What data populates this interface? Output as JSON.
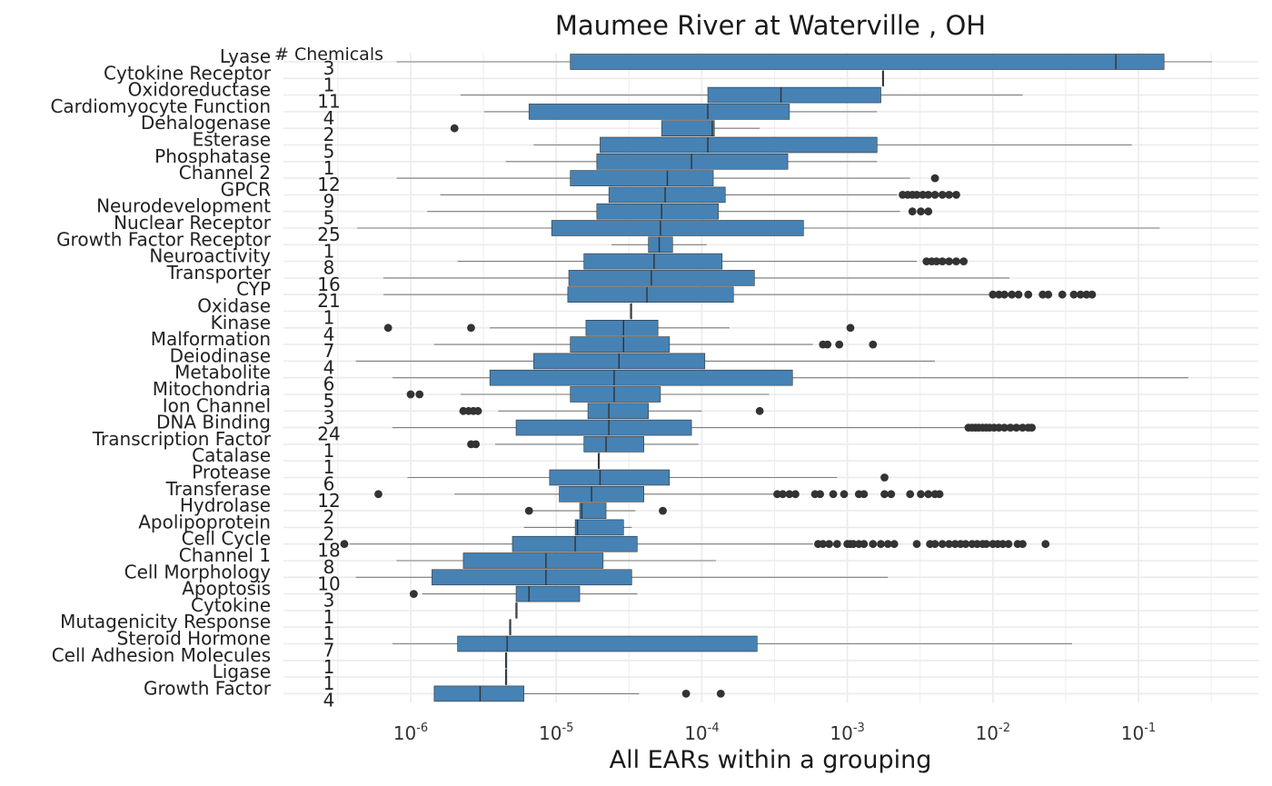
{
  "chart_data": {
    "type": "boxplot",
    "orientation": "horizontal",
    "title": "Maumee River at Waterville , OH",
    "xlabel": "All EARs within a grouping",
    "count_header": "# Chemicals",
    "x_scale": "log10",
    "xlim": [
      3.2e-07,
      0.42
    ],
    "x_ticks": [
      {
        "value": 1e-06,
        "base": "10",
        "exp": "-6"
      },
      {
        "value": 1e-05,
        "base": "10",
        "exp": "-5"
      },
      {
        "value": 0.0001,
        "base": "10",
        "exp": "-4"
      },
      {
        "value": 0.001,
        "base": "10",
        "exp": "-3"
      },
      {
        "value": 0.01,
        "base": "10",
        "exp": "-2"
      },
      {
        "value": 0.1,
        "base": "10",
        "exp": "-1"
      }
    ],
    "grid": true,
    "colors": {
      "box_fill": "#4682b4",
      "box_stroke": "#333333",
      "whisker": "#7f7f7f",
      "outlier": "#333333",
      "grid": "#ebebeb",
      "text": "#222222"
    },
    "groups": [
      {
        "category": "Lyase",
        "count": "3",
        "whisker_low": 8e-07,
        "q1": 1.25e-05,
        "median": 0.07,
        "q3": 0.15,
        "whisker_high": 0.32,
        "outliers": []
      },
      {
        "category": "Cytokine Receptor",
        "count": "1",
        "whisker_low": 0.00175,
        "q1": 0.00175,
        "median": 0.00175,
        "q3": 0.00178,
        "whisker_high": 0.00178,
        "outliers": []
      },
      {
        "category": "Oxidoreductase",
        "count": "11",
        "whisker_low": 2.2e-06,
        "q1": 0.00011,
        "median": 0.00035,
        "q3": 0.0017,
        "whisker_high": 0.016,
        "outliers": []
      },
      {
        "category": "Cardiomyocyte Function",
        "count": "4",
        "whisker_low": 3.2e-06,
        "q1": 6.5e-06,
        "median": 0.00011,
        "q3": 0.0004,
        "whisker_high": 0.0016,
        "outliers": []
      },
      {
        "category": "Dehalogenase",
        "count": "2",
        "whisker_low": 5.3e-05,
        "q1": 5.3e-05,
        "median": 0.000118,
        "q3": 0.000122,
        "whisker_high": 0.00025,
        "outliers": [
          2e-06
        ]
      },
      {
        "category": "Esterase",
        "count": "5",
        "whisker_low": 7e-06,
        "q1": 2e-05,
        "median": 0.00011,
        "q3": 0.0016,
        "whisker_high": 0.09,
        "outliers": []
      },
      {
        "category": "Phosphatase",
        "count": "1",
        "whisker_low": 4.5e-06,
        "q1": 1.9e-05,
        "median": 8.5e-05,
        "q3": 0.00039,
        "whisker_high": 0.0016,
        "outliers": []
      },
      {
        "category": "Channel 2",
        "count": "12",
        "whisker_low": 8e-07,
        "q1": 1.25e-05,
        "median": 5.8e-05,
        "q3": 0.00012,
        "whisker_high": 0.0027,
        "outliers": [
          0.004
        ]
      },
      {
        "category": "GPCR",
        "count": "9",
        "whisker_low": 1.6e-06,
        "q1": 2.3e-05,
        "median": 5.6e-05,
        "q3": 0.000145,
        "whisker_high": 0.0022,
        "outliers": [
          0.0024,
          0.0026,
          0.0028,
          0.003,
          0.0033,
          0.0036,
          0.004,
          0.0045,
          0.005,
          0.0056
        ]
      },
      {
        "category": "Neurodevelopment",
        "count": "5",
        "whisker_low": 1.3e-06,
        "q1": 1.9e-05,
        "median": 5.3e-05,
        "q3": 0.00013,
        "whisker_high": 0.0023,
        "outliers": [
          0.0028,
          0.0032,
          0.0036
        ]
      },
      {
        "category": "Nuclear Receptor",
        "count": "25",
        "whisker_low": 4.3e-07,
        "q1": 9.3e-06,
        "median": 5.2e-05,
        "q3": 0.0005,
        "whisker_high": 0.14,
        "outliers": []
      },
      {
        "category": "Growth Factor Receptor",
        "count": "1",
        "whisker_low": 2.4e-05,
        "q1": 4.3e-05,
        "median": 5.1e-05,
        "q3": 6.3e-05,
        "whisker_high": 0.000108,
        "outliers": []
      },
      {
        "category": "Neuroactivity",
        "count": "8",
        "whisker_low": 2.1e-06,
        "q1": 1.55e-05,
        "median": 4.7e-05,
        "q3": 0.000138,
        "whisker_high": 0.003,
        "outliers": [
          0.0035,
          0.0038,
          0.0041,
          0.0045,
          0.005,
          0.0056,
          0.0063
        ]
      },
      {
        "category": "Transporter",
        "count": "16",
        "whisker_low": 6.5e-07,
        "q1": 1.22e-05,
        "median": 4.5e-05,
        "q3": 0.00023,
        "whisker_high": 0.013,
        "outliers": []
      },
      {
        "category": "CYP",
        "count": "21",
        "whisker_low": 6.5e-07,
        "q1": 1.2e-05,
        "median": 4.2e-05,
        "q3": 0.000165,
        "whisker_high": 0.0095,
        "outliers": [
          0.01,
          0.011,
          0.012,
          0.0135,
          0.015,
          0.0175,
          0.022,
          0.024,
          0.03,
          0.036,
          0.04,
          0.044,
          0.048
        ]
      },
      {
        "category": "Oxidase",
        "count": "1",
        "whisker_low": 3.25e-05,
        "q1": 3.25e-05,
        "median": 3.25e-05,
        "q3": 3.3e-05,
        "whisker_high": 3.3e-05,
        "outliers": []
      },
      {
        "category": "Kinase",
        "count": "4",
        "whisker_low": 3.5e-06,
        "q1": 1.6e-05,
        "median": 2.9e-05,
        "q3": 5e-05,
        "whisker_high": 0.000155,
        "outliers": [
          7e-07,
          2.6e-06,
          0.00105
        ]
      },
      {
        "category": "Malformation",
        "count": "7",
        "whisker_low": 1.45e-06,
        "q1": 1.25e-05,
        "median": 2.9e-05,
        "q3": 6e-05,
        "whisker_high": 0.00058,
        "outliers": [
          0.00068,
          0.00073,
          0.00088,
          0.0015
        ]
      },
      {
        "category": "Deiodinase",
        "count": "4",
        "whisker_low": 4.2e-07,
        "q1": 7e-06,
        "median": 2.7e-05,
        "q3": 0.000105,
        "whisker_high": 0.004,
        "outliers": []
      },
      {
        "category": "Metabolite",
        "count": "6",
        "whisker_low": 7.5e-07,
        "q1": 3.5e-06,
        "median": 2.5e-05,
        "q3": 0.00042,
        "whisker_high": 0.22,
        "outliers": []
      },
      {
        "category": "Mitochondria",
        "count": "5",
        "whisker_low": 2.2e-06,
        "q1": 1.25e-05,
        "median": 2.5e-05,
        "q3": 5.2e-05,
        "whisker_high": 0.00029,
        "outliers": [
          1e-06,
          1.15e-06
        ]
      },
      {
        "category": "Ion Channel",
        "count": "3",
        "whisker_low": 4e-06,
        "q1": 1.65e-05,
        "median": 2.3e-05,
        "q3": 4.3e-05,
        "whisker_high": 0.0001,
        "outliers": [
          2.3e-06,
          2.5e-06,
          2.7e-06,
          2.9e-06,
          0.00025
        ]
      },
      {
        "category": "DNA Binding",
        "count": "24",
        "whisker_low": 7.5e-07,
        "q1": 5.3e-06,
        "median": 2.3e-05,
        "q3": 8.5e-05,
        "whisker_high": 0.0065,
        "outliers": [
          0.0068,
          0.0072,
          0.0076,
          0.008,
          0.0085,
          0.009,
          0.0095,
          0.0102,
          0.011,
          0.012,
          0.0132,
          0.0145,
          0.016,
          0.0175,
          0.0185
        ]
      },
      {
        "category": "Transcription Factor",
        "count": "1",
        "whisker_low": 3.8e-06,
        "q1": 1.55e-05,
        "median": 2.2e-05,
        "q3": 4e-05,
        "whisker_high": 9.5e-05,
        "outliers": [
          2.6e-06,
          2.8e-06
        ]
      },
      {
        "category": "Catalase",
        "count": "1",
        "whisker_low": 1.95e-05,
        "q1": 1.95e-05,
        "median": 1.95e-05,
        "q3": 1.97e-05,
        "whisker_high": 1.97e-05,
        "outliers": []
      },
      {
        "category": "Protease",
        "count": "6",
        "whisker_low": 9.5e-07,
        "q1": 9e-06,
        "median": 2e-05,
        "q3": 6e-05,
        "whisker_high": 0.00085,
        "outliers": [
          0.0018
        ]
      },
      {
        "category": "Transferase",
        "count": "12",
        "whisker_low": 2e-06,
        "q1": 1.05e-05,
        "median": 1.75e-05,
        "q3": 4e-05,
        "whisker_high": 0.00032,
        "outliers": [
          6e-07,
          0.00033,
          0.00036,
          0.0004,
          0.00044,
          0.0006,
          0.00065,
          0.0008,
          0.00095,
          0.0012,
          0.0013,
          0.0018,
          0.002,
          0.0027,
          0.0032,
          0.0036,
          0.004,
          0.0043
        ]
      },
      {
        "category": "Hydrolase",
        "count": "2",
        "whisker_low": 6.5e-06,
        "q1": 1.45e-05,
        "median": 1.5e-05,
        "q3": 2.2e-05,
        "whisker_high": 3.5e-05,
        "outliers": [
          6.5e-06,
          5.4e-05
        ]
      },
      {
        "category": "Apolipoprotein",
        "count": "2",
        "whisker_low": 6e-06,
        "q1": 1.35e-05,
        "median": 1.4e-05,
        "q3": 2.9e-05,
        "whisker_high": 3.3e-05,
        "outliers": []
      },
      {
        "category": "Cell Cycle",
        "count": "18",
        "whisker_low": 3.8e-07,
        "q1": 5e-06,
        "median": 1.35e-05,
        "q3": 3.6e-05,
        "whisker_high": 0.00058,
        "outliers": [
          3.5e-07,
          0.00063,
          0.00068,
          0.00075,
          0.00085,
          0.001,
          0.00105,
          0.0011,
          0.0012,
          0.0013,
          0.0015,
          0.0017,
          0.0019,
          0.0021,
          0.003,
          0.0037,
          0.004,
          0.0045,
          0.005,
          0.0055,
          0.006,
          0.0065,
          0.0072,
          0.0078,
          0.0085,
          0.009,
          0.01,
          0.0108,
          0.0117,
          0.0128,
          0.0148,
          0.016,
          0.023
        ]
      },
      {
        "category": "Channel 1",
        "count": "8",
        "whisker_low": 8e-07,
        "q1": 2.3e-06,
        "median": 8.5e-06,
        "q3": 2.1e-05,
        "whisker_high": 0.000125,
        "outliers": []
      },
      {
        "category": "Cell Morphology",
        "count": "10",
        "whisker_low": 4.2e-07,
        "q1": 1.4e-06,
        "median": 8.5e-06,
        "q3": 3.3e-05,
        "whisker_high": 0.0019,
        "outliers": []
      },
      {
        "category": "Apoptosis",
        "count": "3",
        "whisker_low": 1.2e-06,
        "q1": 5.3e-06,
        "median": 6.5e-06,
        "q3": 1.45e-05,
        "whisker_high": 3.6e-05,
        "outliers": [
          1.05e-06
        ]
      },
      {
        "category": "Cytokine",
        "count": "1",
        "whisker_low": 5.3e-06,
        "q1": 5.3e-06,
        "median": 5.3e-06,
        "q3": 5.35e-06,
        "whisker_high": 5.35e-06,
        "outliers": []
      },
      {
        "category": "Mutagenicity Response",
        "count": "1",
        "whisker_low": 4.8e-06,
        "q1": 4.8e-06,
        "median": 4.8e-06,
        "q3": 4.85e-06,
        "whisker_high": 4.85e-06,
        "outliers": []
      },
      {
        "category": "Steroid Hormone",
        "count": "7",
        "whisker_low": 7.5e-07,
        "q1": 2.1e-06,
        "median": 4.6e-06,
        "q3": 0.00024,
        "whisker_high": 0.035,
        "outliers": []
      },
      {
        "category": "Cell Adhesion Molecules",
        "count": "1",
        "whisker_low": 4.5e-06,
        "q1": 4.5e-06,
        "median": 4.5e-06,
        "q3": 4.55e-06,
        "whisker_high": 4.55e-06,
        "outliers": []
      },
      {
        "category": "Ligase",
        "count": "1",
        "whisker_low": 4.5e-06,
        "q1": 4.5e-06,
        "median": 4.5e-06,
        "q3": 4.55e-06,
        "whisker_high": 4.55e-06,
        "outliers": []
      },
      {
        "category": "Growth Factor",
        "count": "4",
        "whisker_low": 1.45e-06,
        "q1": 1.45e-06,
        "median": 3e-06,
        "q3": 6e-06,
        "whisker_high": 3.7e-05,
        "outliers": [
          7.8e-05,
          0.000135
        ]
      }
    ]
  }
}
